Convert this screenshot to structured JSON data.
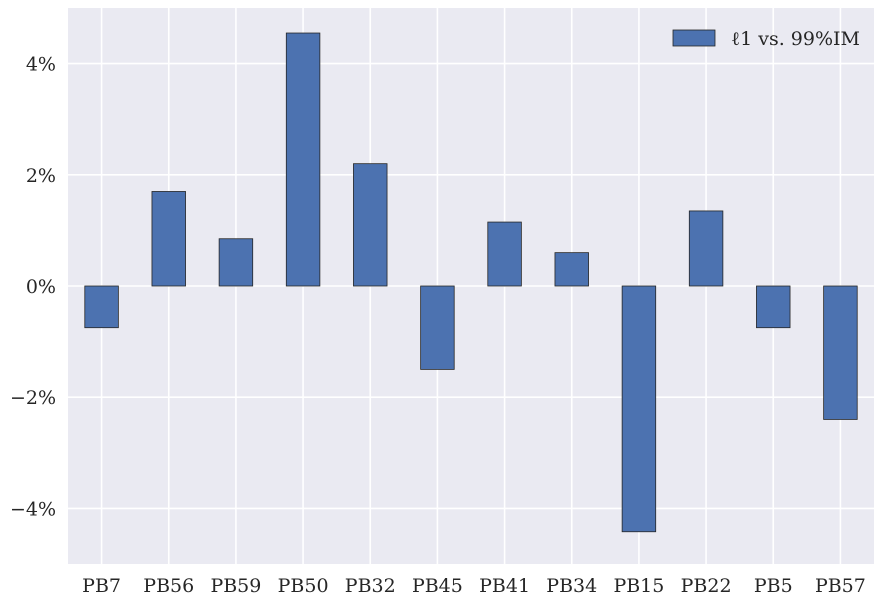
{
  "chart_data": {
    "type": "bar",
    "categories": [
      "PB7",
      "PB56",
      "PB59",
      "PB50",
      "PB32",
      "PB45",
      "PB41",
      "PB34",
      "PB15",
      "PB22",
      "PB5",
      "PB57"
    ],
    "series": [
      {
        "name": "ℓ1 vs. 99%IM",
        "values": [
          -0.75,
          1.7,
          0.85,
          4.55,
          2.2,
          -1.5,
          1.15,
          0.6,
          -4.42,
          1.35,
          -0.75,
          -2.4
        ]
      }
    ],
    "yticks": [
      -4,
      -2,
      0,
      2,
      4
    ],
    "ytick_labels": [
      "−4%",
      "−2%",
      "0%",
      "2%",
      "4%"
    ],
    "ylim": [
      -5,
      5
    ],
    "grid": true,
    "legend_position": "top-right",
    "colors": {
      "bar": "#4c72b0",
      "background": "#eaeaf2",
      "grid": "#ffffff",
      "edge": "#262626"
    }
  }
}
